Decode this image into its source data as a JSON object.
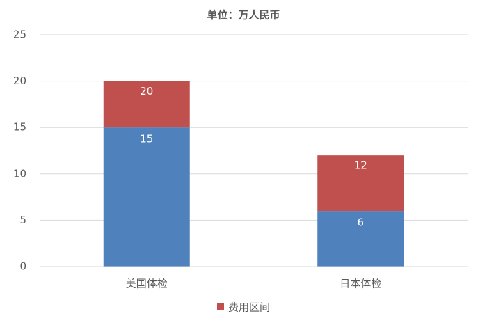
{
  "chart_data": {
    "type": "floating_bar",
    "title": "单位：万人民币",
    "categories": [
      "美国体检",
      "日本体检"
    ],
    "low": {
      "color": "#4f81bd",
      "values": [
        15,
        6
      ]
    },
    "series": [
      {
        "name": "费用区间",
        "color": "#c0504d",
        "values": [
          20,
          12
        ]
      }
    ],
    "ylim": [
      0,
      25
    ],
    "yticks": [
      0,
      5,
      10,
      15,
      20,
      25
    ],
    "grid": true,
    "legend": "bottom"
  }
}
